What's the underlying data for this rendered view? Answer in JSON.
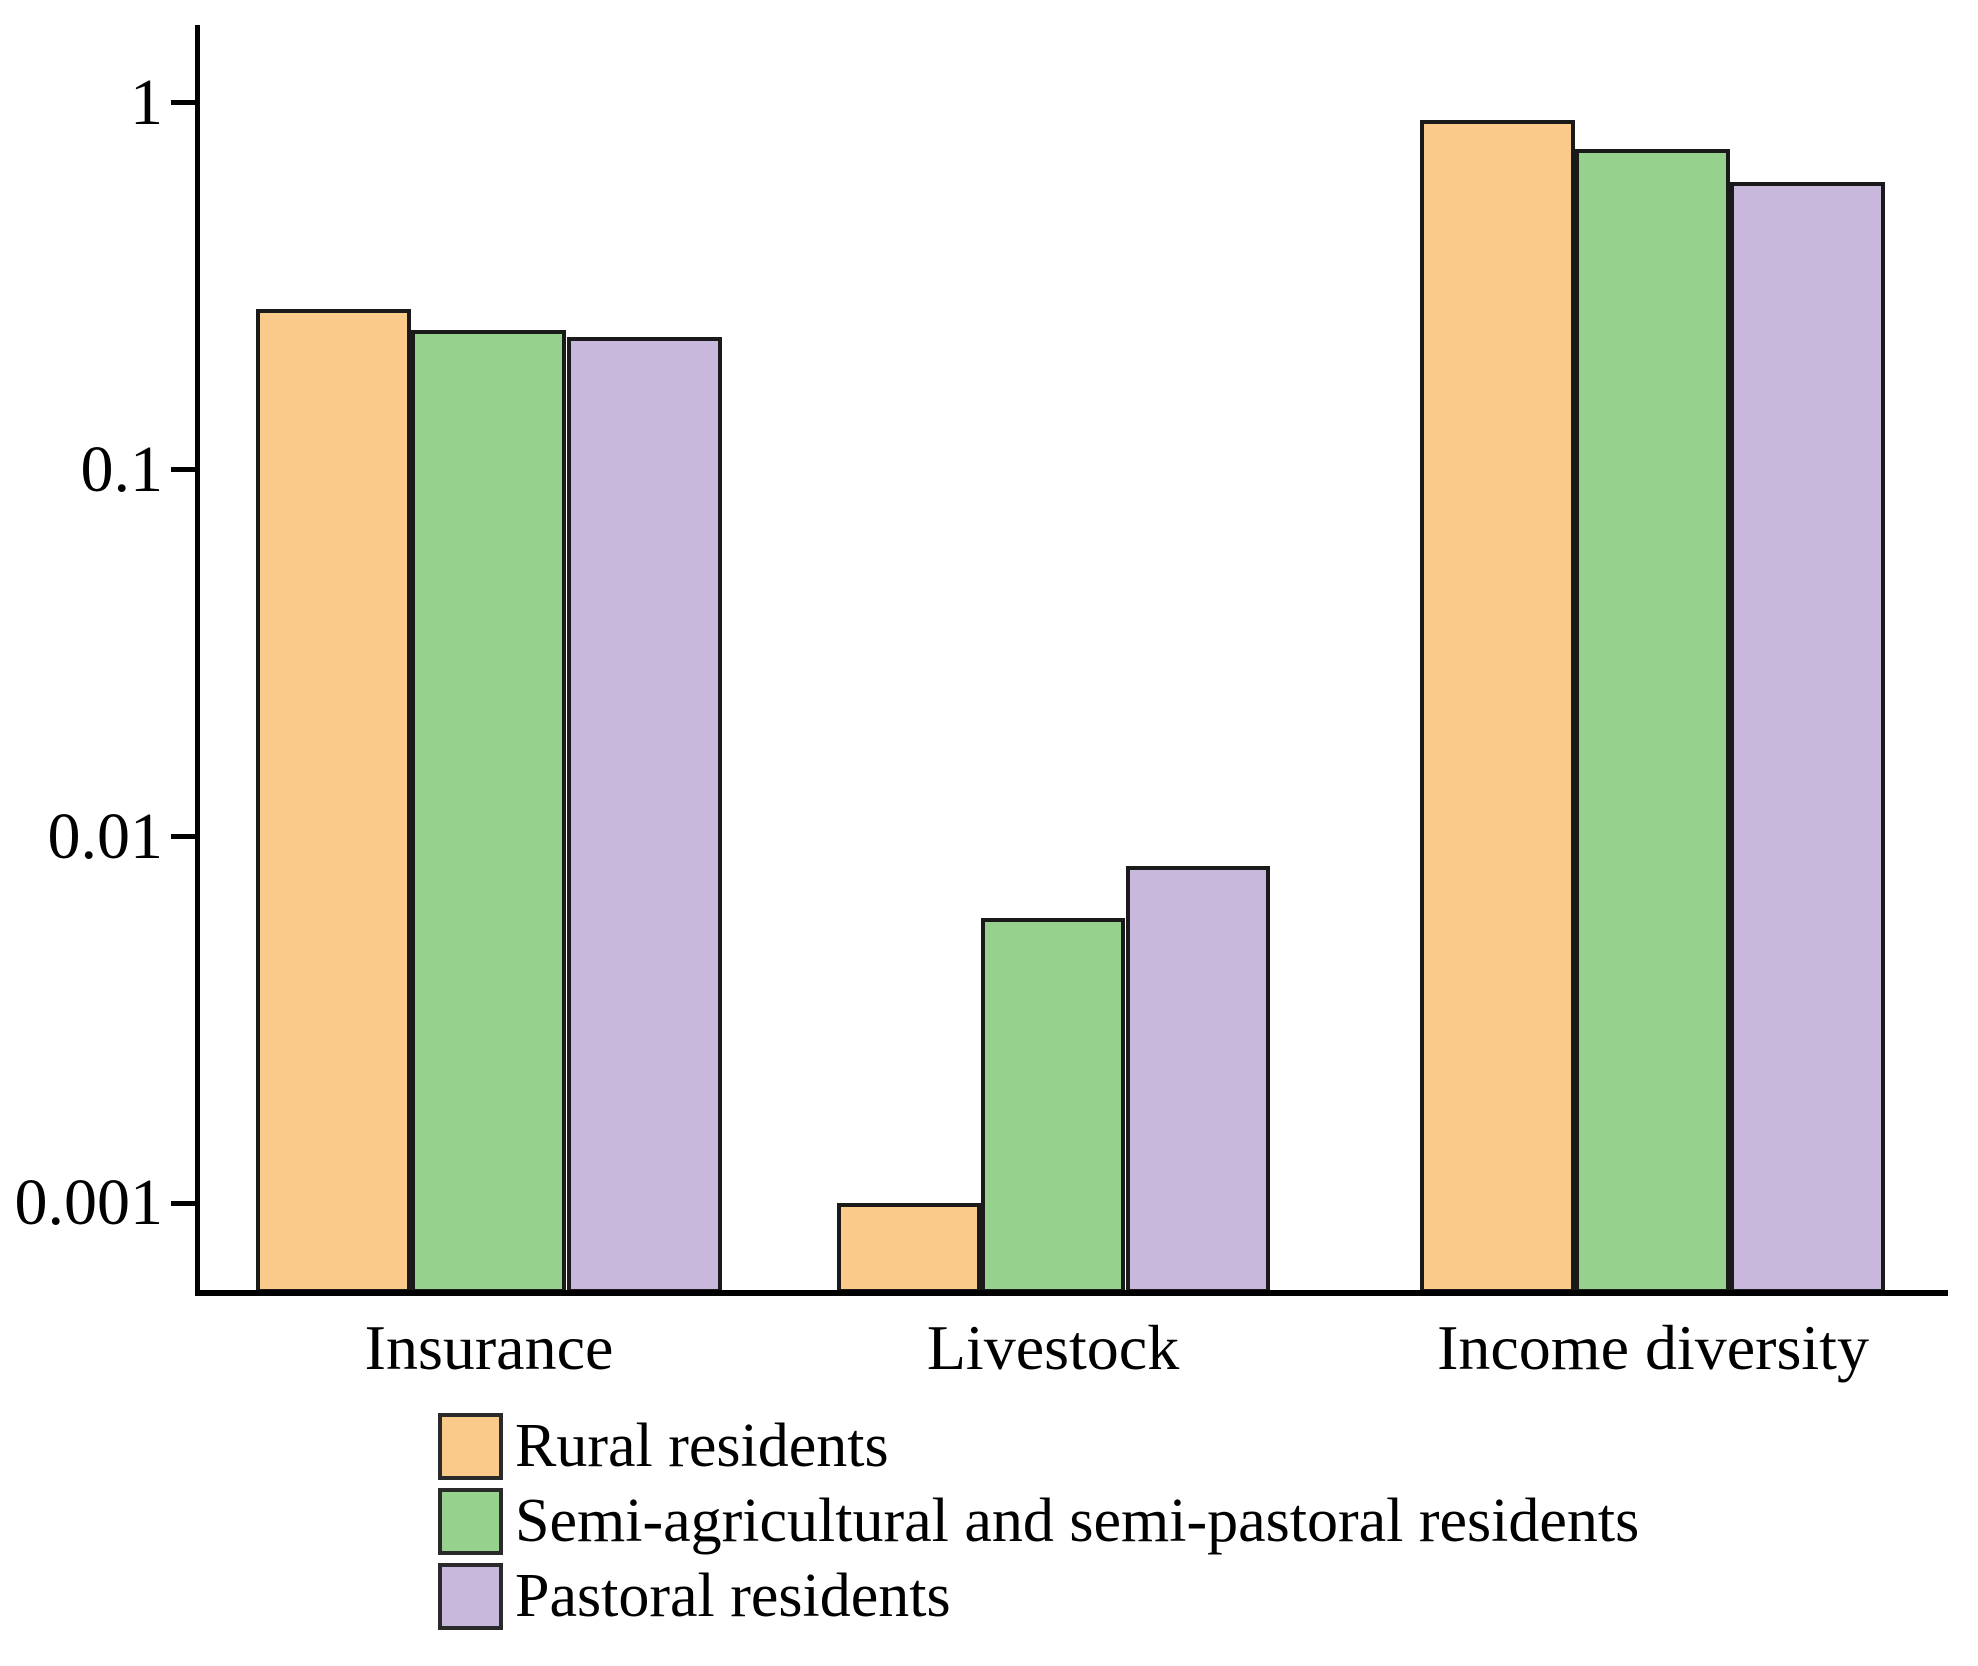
{
  "chart_data": {
    "type": "bar",
    "yscale": "log",
    "title": "",
    "xlabel": "",
    "ylabel": "",
    "grid": false,
    "legend_position": "bottom-left",
    "categories": [
      "Insurance",
      "Livestock",
      "Income diversity"
    ],
    "series": [
      {
        "name": "Rural residents",
        "color": "#FACA8A",
        "values": [
          0.275,
          0.001,
          0.9
        ]
      },
      {
        "name": "Semi-agricultural and semi-pastoral residents",
        "color": "#96D18D",
        "values": [
          0.24,
          0.006,
          0.75
        ]
      },
      {
        "name": "Pastoral residents",
        "color": "#C8B8DC",
        "values": [
          0.23,
          0.0083,
          0.61
        ]
      }
    ],
    "y_ticks": [
      {
        "label": "1",
        "value": 1
      },
      {
        "label": "0.1",
        "value": 0.1
      },
      {
        "label": "0.01",
        "value": 0.01
      },
      {
        "label": "0.001",
        "value": 0.001
      }
    ],
    "ylim": [
      0.00057,
      1.63
    ],
    "bar_border_color": "#1a1a1a",
    "axis_color": "#000000"
  }
}
